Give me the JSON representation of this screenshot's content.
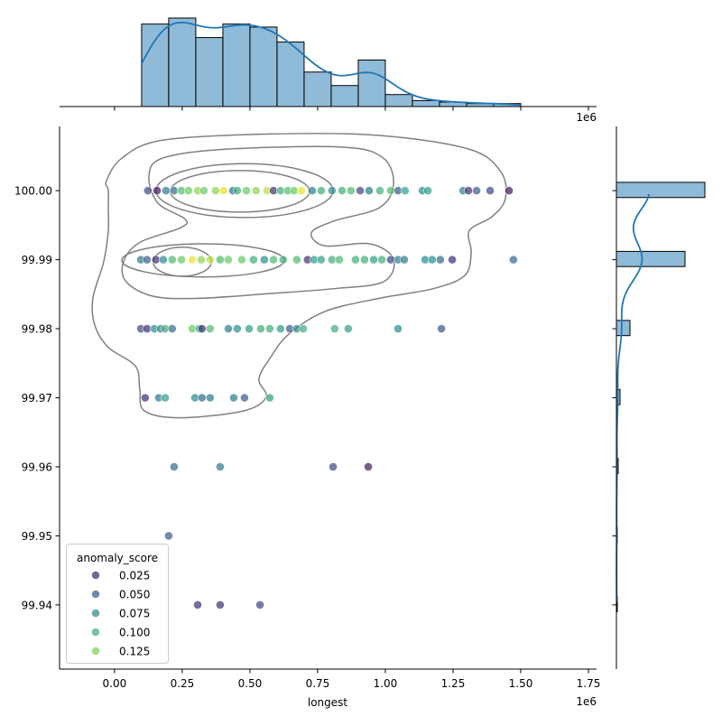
{
  "chart_data": {
    "type": "scatter",
    "kind": "jointplot",
    "xlabel": "longest",
    "ylabel": "",
    "x_offset_label": "1e6",
    "x_unit_multiplier": 1000000,
    "xlim": [
      -0.203,
      1.78
    ],
    "ylim": [
      99.9307,
      100.0093
    ],
    "x_ticks": [
      0.0,
      0.25,
      0.5,
      0.75,
      1.0,
      1.25,
      1.5,
      1.75
    ],
    "x_tick_labels": [
      "0.00",
      "0.25",
      "0.50",
      "0.75",
      "1.00",
      "1.25",
      "1.50",
      "1.75"
    ],
    "y_ticks": [
      100.0,
      99.99,
      99.98,
      99.97,
      99.96,
      99.95,
      99.94
    ],
    "y_tick_labels": [
      "100.00",
      "99.99",
      "99.98",
      "99.97",
      "99.96",
      "99.95",
      "99.94"
    ],
    "grid": false,
    "hue": {
      "name": "anomaly_score",
      "colormap": "viridis",
      "range": [
        0.01,
        0.155
      ],
      "alpha": 0.7
    },
    "legend": {
      "title": "anomaly_score",
      "placement": "lower-left",
      "entries": [
        {
          "label": "0.025",
          "value": 0.025
        },
        {
          "label": "0.050",
          "value": 0.05
        },
        {
          "label": "0.075",
          "value": 0.075
        },
        {
          "label": "0.100",
          "value": 0.1
        },
        {
          "label": "0.125",
          "value": 0.125
        }
      ]
    },
    "points": [
      {
        "y": 100.0,
        "x": [
          0.123,
          0.157,
          0.19,
          0.22,
          0.247,
          0.273,
          0.307,
          0.33,
          0.373,
          0.403,
          0.437,
          0.453,
          0.487,
          0.523,
          0.563,
          0.587,
          0.613,
          0.64,
          0.663,
          0.69,
          0.73,
          0.763,
          0.803,
          0.84,
          0.873,
          0.907,
          0.94,
          0.98,
          1.02,
          1.047,
          1.073,
          1.137,
          1.157,
          1.287,
          1.307,
          1.337,
          1.387,
          1.457
        ],
        "score": [
          0.04,
          0.02,
          0.07,
          0.06,
          0.11,
          0.12,
          0.13,
          0.12,
          0.13,
          0.15,
          0.06,
          0.1,
          0.12,
          0.13,
          0.14,
          0.03,
          0.1,
          0.11,
          0.12,
          0.15,
          0.07,
          0.1,
          0.08,
          0.1,
          0.11,
          0.04,
          0.07,
          0.1,
          0.11,
          0.05,
          0.09,
          0.08,
          0.09,
          0.07,
          0.03,
          0.05,
          0.04,
          0.02
        ]
      },
      {
        "y": 99.99,
        "x": [
          0.097,
          0.12,
          0.153,
          0.18,
          0.213,
          0.247,
          0.287,
          0.32,
          0.353,
          0.39,
          0.42,
          0.47,
          0.513,
          0.553,
          0.587,
          0.623,
          0.673,
          0.713,
          0.737,
          0.763,
          0.803,
          0.83,
          0.89,
          0.923,
          0.957,
          0.987,
          1.02,
          1.047,
          1.07,
          1.147,
          1.173,
          1.203,
          1.247,
          1.473
        ],
        "score": [
          0.07,
          0.05,
          0.03,
          0.08,
          0.11,
          0.12,
          0.15,
          0.13,
          0.14,
          0.11,
          0.12,
          0.12,
          0.1,
          0.08,
          0.11,
          0.1,
          0.11,
          0.03,
          0.09,
          0.09,
          0.1,
          0.11,
          0.1,
          0.1,
          0.09,
          0.1,
          0.04,
          0.07,
          0.07,
          0.08,
          0.08,
          0.06,
          0.03,
          0.06
        ]
      },
      {
        "y": 99.98,
        "x": [
          0.097,
          0.12,
          0.147,
          0.17,
          0.187,
          0.213,
          0.287,
          0.313,
          0.323,
          0.353,
          0.42,
          0.453,
          0.497,
          0.54,
          0.573,
          0.613,
          0.647,
          0.673,
          0.697,
          0.813,
          0.863,
          1.047,
          1.207
        ],
        "score": [
          0.04,
          0.03,
          0.08,
          0.07,
          0.1,
          0.06,
          0.12,
          0.09,
          0.03,
          0.11,
          0.07,
          0.08,
          0.09,
          0.1,
          0.1,
          0.09,
          0.05,
          0.08,
          0.1,
          0.1,
          0.09,
          0.08,
          0.05
        ]
      },
      {
        "y": 99.97,
        "x": [
          0.113,
          0.163,
          0.187,
          0.297,
          0.323,
          0.353,
          0.44,
          0.48,
          0.573
        ],
        "score": [
          0.03,
          0.07,
          0.09,
          0.08,
          0.06,
          0.07,
          0.07,
          0.05,
          0.09
        ]
      },
      {
        "y": 99.96,
        "x": [
          0.22,
          0.39,
          0.807,
          0.937
        ],
        "score": [
          0.06,
          0.07,
          0.04,
          0.02
        ]
      },
      {
        "y": 99.95,
        "x": [
          0.2
        ],
        "score": [
          0.05
        ]
      },
      {
        "y": 99.94,
        "x": [
          0.307,
          0.39,
          0.537
        ],
        "score": [
          0.03,
          0.03,
          0.04
        ]
      }
    ],
    "kde_contours": {
      "color": "#808080",
      "polygons": [
        [
          [
            -0.023,
            100.0001
          ],
          [
            -0.03,
            100.0014
          ],
          [
            0.027,
            100.0047
          ],
          [
            0.177,
            100.0073
          ],
          [
            0.577,
            100.0082
          ],
          [
            0.977,
            100.008
          ],
          [
            1.31,
            100.006
          ],
          [
            1.427,
            100.0027
          ],
          [
            1.443,
            99.9988
          ],
          [
            1.393,
            99.9962
          ],
          [
            1.31,
            99.9942
          ],
          [
            1.317,
            99.991
          ],
          [
            1.293,
            99.9877
          ],
          [
            1.177,
            99.9858
          ],
          [
            0.977,
            99.9844
          ],
          [
            0.777,
            99.9825
          ],
          [
            0.643,
            99.9792
          ],
          [
            0.577,
            99.9759
          ],
          [
            0.533,
            99.9727
          ],
          [
            0.56,
            99.9701
          ],
          [
            0.477,
            99.9681
          ],
          [
            0.243,
            99.9671
          ],
          [
            0.11,
            99.9681
          ],
          [
            0.093,
            99.9714
          ],
          [
            0.077,
            99.9746
          ],
          [
            -0.023,
            99.9773
          ],
          [
            -0.073,
            99.9805
          ],
          [
            -0.08,
            99.9844
          ],
          [
            -0.04,
            99.9897
          ],
          [
            -0.023,
            99.9942
          ],
          [
            -0.023,
            99.9975
          ]
        ],
        [
          [
            0.127,
            100.0021
          ],
          [
            0.177,
            100.0047
          ],
          [
            0.41,
            100.006
          ],
          [
            0.843,
            100.0063
          ],
          [
            0.993,
            100.0047
          ],
          [
            1.03,
            100.0008
          ],
          [
            0.977,
            99.9975
          ],
          [
            0.81,
            99.9956
          ],
          [
            0.727,
            99.9939
          ],
          [
            0.777,
            99.992
          ],
          [
            0.943,
            99.9923
          ],
          [
            1.03,
            99.9901
          ],
          [
            0.993,
            99.9868
          ],
          [
            0.81,
            99.9858
          ],
          [
            0.577,
            99.9851
          ],
          [
            0.31,
            99.9844
          ],
          [
            0.143,
            99.9847
          ],
          [
            0.043,
            99.9868
          ],
          [
            0.033,
            99.9897
          ],
          [
            0.093,
            99.9925
          ],
          [
            0.243,
            99.9946
          ],
          [
            0.26,
            99.9959
          ],
          [
            0.16,
            99.9982
          ]
        ]
      ],
      "ellipses": [
        {
          "cx": 0.48,
          "cy": 100.0,
          "rx": 0.327,
          "ry": 0.0039
        },
        {
          "cx": 0.463,
          "cy": 99.9999,
          "rx": 0.257,
          "ry": 0.003
        },
        {
          "cx": 0.327,
          "cy": 99.9899,
          "rx": 0.3,
          "ry": 0.0024
        },
        {
          "cx": 0.25,
          "cy": 99.9897,
          "rx": 0.107,
          "ry": 0.0021
        }
      ]
    },
    "marginal_x_hist": {
      "color": "#1f77b4",
      "bin_edges": [
        0.1,
        0.2,
        0.3,
        0.4,
        0.5,
        0.6,
        0.7,
        0.8,
        0.9,
        1.0,
        1.1,
        1.2,
        1.3,
        1.4,
        1.5
      ],
      "counts": [
        55,
        59,
        46,
        55,
        53,
        43,
        23,
        14,
        31,
        8,
        4,
        3,
        2,
        2
      ],
      "kde": true
    },
    "marginal_y_hist": {
      "color": "#1f77b4",
      "bins": [
        {
          "lo": 99.999,
          "hi": 100.0012,
          "count": 196
        },
        {
          "lo": 99.989,
          "hi": 99.9912,
          "count": 152
        },
        {
          "lo": 99.979,
          "hi": 99.9812,
          "count": 30
        },
        {
          "lo": 99.969,
          "hi": 99.9712,
          "count": 8
        },
        {
          "lo": 99.959,
          "hi": 99.9612,
          "count": 4
        },
        {
          "lo": 99.949,
          "hi": 99.9512,
          "count": 2
        },
        {
          "lo": 99.939,
          "hi": 99.9412,
          "count": 2
        }
      ],
      "kde": true
    }
  }
}
